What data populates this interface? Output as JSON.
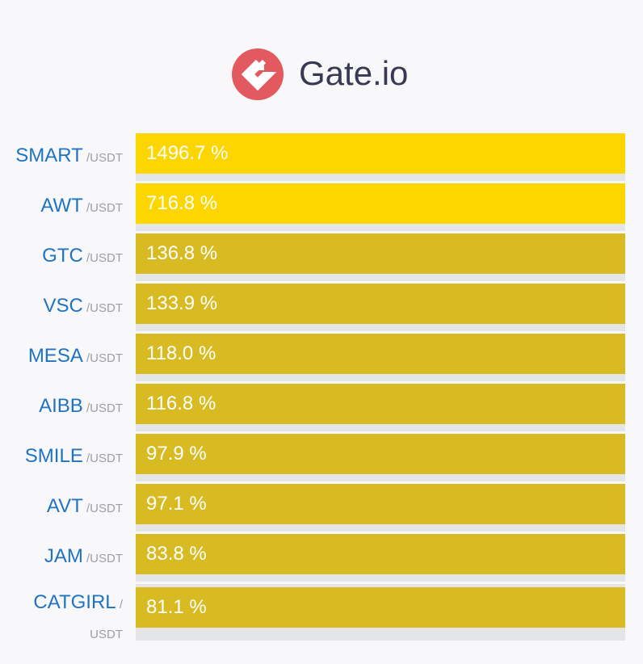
{
  "header": {
    "brand": "Gate.io"
  },
  "chart_data": {
    "type": "bar",
    "orientation": "horizontal",
    "title": "",
    "xlabel": "",
    "ylabel": "",
    "unit": "%",
    "quote": "/USDT",
    "categories": [
      "SMART",
      "AWT",
      "GTC",
      "VSC",
      "MESA",
      "AIBB",
      "SMILE",
      "AVT",
      "JAM",
      "CATGIRL"
    ],
    "values": [
      1496.7,
      716.8,
      136.8,
      133.9,
      118.0,
      116.8,
      97.9,
      97.1,
      83.8,
      81.1
    ],
    "value_labels": [
      "1496.7 %",
      "716.8 %",
      "136.8 %",
      "133.9 %",
      "118.0 %",
      "116.8 %",
      "97.9 %",
      "97.1 %",
      "83.8 %",
      "81.1 %"
    ],
    "bar_fill_fraction": [
      1,
      1,
      1,
      1,
      1,
      1,
      1,
      1,
      1,
      1
    ],
    "colors": {
      "highlight": "#fdd600",
      "bar": "#d8bb22",
      "track": "#e4e5e7",
      "symbol": "#1f73c2",
      "quote": "#9b9ea6",
      "logo": "#e25a5f"
    },
    "highlight_count": 2
  }
}
